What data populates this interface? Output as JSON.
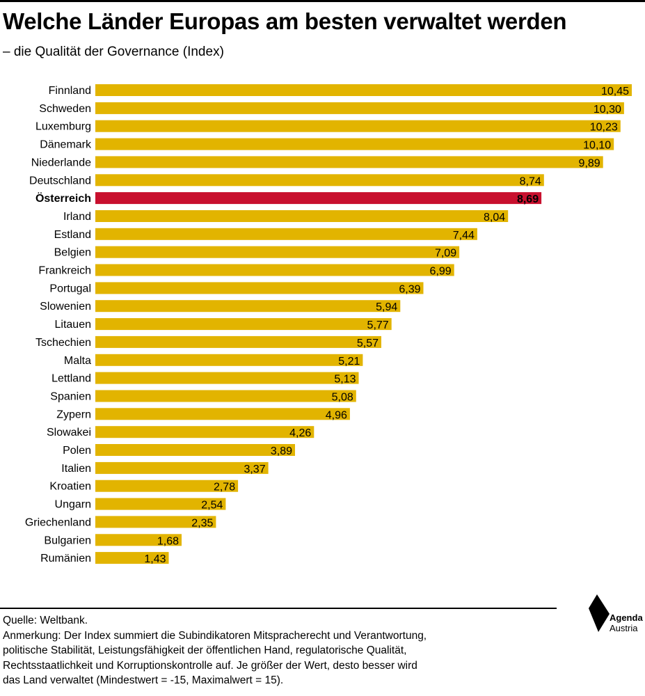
{
  "header": {
    "title": "Welche Länder Europas am besten verwaltet werden",
    "subtitle": "– die Qualität der Governance (Index)"
  },
  "chart_data": {
    "type": "bar",
    "orientation": "horizontal",
    "title": "Welche Länder Europas am besten verwaltet werden",
    "subtitle": "– die Qualität der Governance (Index)",
    "categories": [
      "Finnland",
      "Schweden",
      "Luxemburg",
      "Dänemark",
      "Niederlande",
      "Deutschland",
      "Österreich",
      "Irland",
      "Estland",
      "Belgien",
      "Frankreich",
      "Portugal",
      "Slowenien",
      "Litauen",
      "Tschechien",
      "Malta",
      "Lettland",
      "Spanien",
      "Zypern",
      "Slowakei",
      "Polen",
      "Italien",
      "Kroatien",
      "Ungarn",
      "Griechenland",
      "Bulgarien",
      "Rumänien"
    ],
    "values": [
      10.45,
      10.3,
      10.23,
      10.1,
      9.89,
      8.74,
      8.69,
      8.04,
      7.44,
      7.09,
      6.99,
      6.39,
      5.94,
      5.77,
      5.57,
      5.21,
      5.13,
      5.08,
      4.96,
      4.26,
      3.89,
      3.37,
      2.78,
      2.54,
      2.35,
      1.68,
      1.43
    ],
    "value_labels": [
      "10,45",
      "10,30",
      "10,23",
      "10,10",
      "9,89",
      "8,74",
      "8,69",
      "8,04",
      "7,44",
      "7,09",
      "6,99",
      "6,39",
      "5,94",
      "5,77",
      "5,57",
      "5,21",
      "5,13",
      "5,08",
      "4,96",
      "4,26",
      "3,89",
      "3,37",
      "2,78",
      "2,54",
      "2,35",
      "1,68",
      "1,43"
    ],
    "highlight": "Österreich",
    "colors": {
      "bar": "#e2b400",
      "highlight": "#c8102e",
      "highlight_text": "#ffffff"
    },
    "grid": false,
    "legend": "none"
  },
  "footer": {
    "source": "Quelle: Weltbank.",
    "note_lines": [
      "Anmerkung: Der Index summiert die Subindikatoren Mitspracherecht und Verantwortung,",
      "politische Stabilität, Leistungsfähigkeit der öffentlichen Hand, regulatorische Qualität,",
      "Rechtsstaatlichkeit und Korruptionskontrolle auf. Je größer der Wert, desto besser wird",
      "das Land verwaltet (Mindestwert = -15, Maximalwert = 15)."
    ]
  },
  "logo": {
    "line1": "Agenda",
    "line2": "Austria",
    "icon": "agenda-austria-logo-icon"
  }
}
